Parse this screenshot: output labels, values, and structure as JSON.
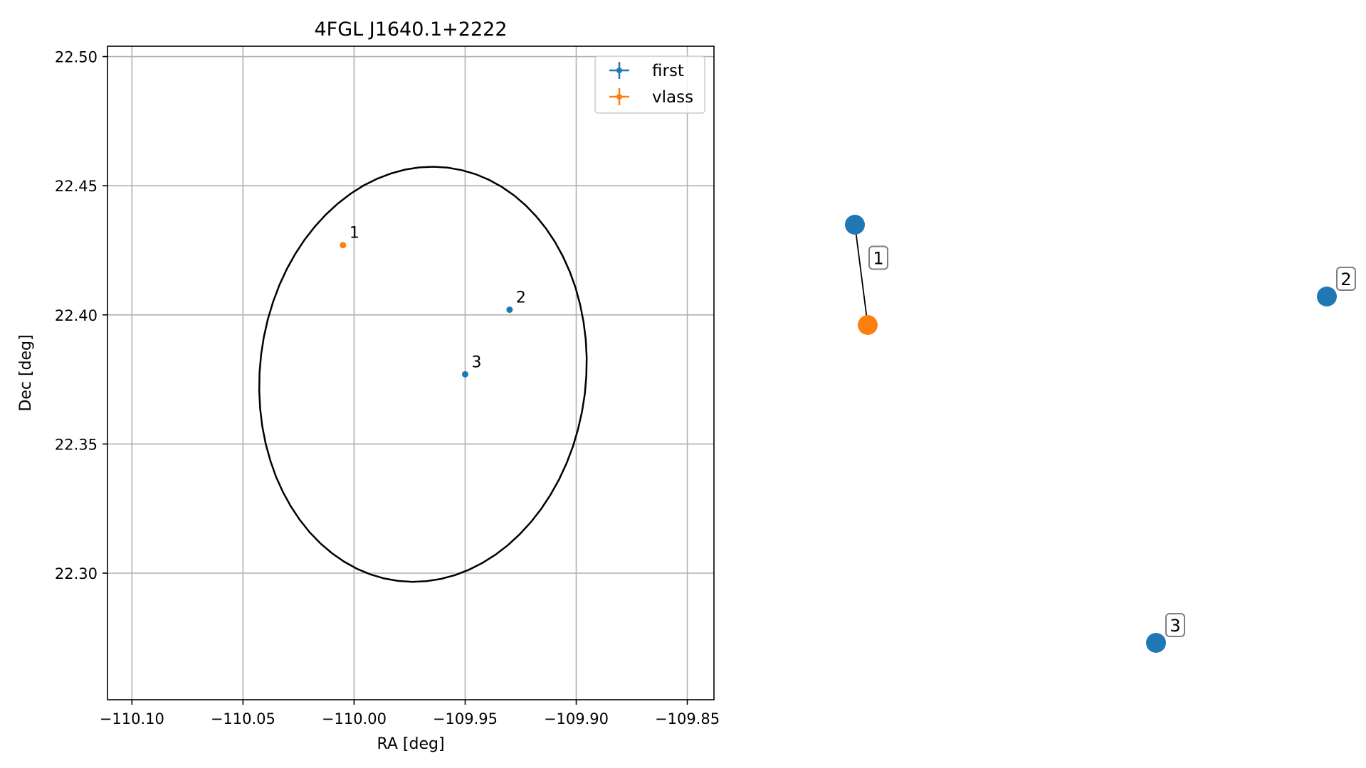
{
  "chart_data": [
    {
      "type": "scatter",
      "title": "4FGL J1640.1+2222",
      "xlabel": "RA [deg]",
      "ylabel": "Dec [deg]",
      "xlim": [
        -110.111,
        -109.838
      ],
      "ylim": [
        22.251,
        22.504
      ],
      "xticks": [
        -110.1,
        -110.05,
        -110.0,
        -109.95,
        -109.9,
        -109.85
      ],
      "xtick_labels": [
        "−110.10",
        "−110.05",
        "−110.00",
        "−109.95",
        "−109.90",
        "−109.85"
      ],
      "yticks": [
        22.3,
        22.35,
        22.4,
        22.45,
        22.5
      ],
      "ytick_labels": [
        "22.30",
        "22.35",
        "22.40",
        "22.45",
        "22.50"
      ],
      "grid": true,
      "legend_position": "top-right",
      "series": [
        {
          "name": "first",
          "color": "#1f77b4",
          "points": [
            {
              "x": -109.93,
              "y": 22.402,
              "label": "2"
            },
            {
              "x": -109.95,
              "y": 22.377,
              "label": "3"
            }
          ]
        },
        {
          "name": "vlass",
          "color": "#ff7f0e",
          "points": [
            {
              "x": -110.005,
              "y": 22.427,
              "label": "1"
            }
          ]
        }
      ],
      "ellipse": {
        "center": [
          -109.969,
          22.377
        ],
        "semi_major": 0.081,
        "semi_minor": 0.073,
        "angle_deg": 73,
        "color": "#000000"
      }
    },
    {
      "type": "graph",
      "nodes": [
        {
          "id": "first-1",
          "color": "#1f77b4"
        },
        {
          "id": "vlass-1",
          "color": "#ff7f0e"
        },
        {
          "id": "first-2",
          "color": "#1f77b4"
        },
        {
          "id": "first-3",
          "color": "#1f77b4"
        }
      ],
      "edges": [
        {
          "from": "first-1",
          "to": "vlass-1",
          "label": "1"
        }
      ],
      "labels": [
        {
          "node": "first-2",
          "text": "2"
        },
        {
          "node": "first-3",
          "text": "3"
        }
      ]
    }
  ]
}
